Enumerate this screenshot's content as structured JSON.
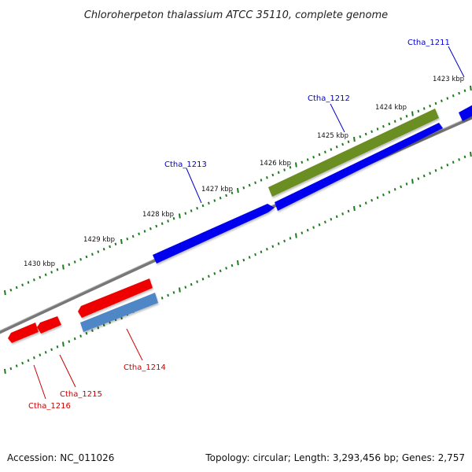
{
  "title": "Chloroherpeton thalassium ATCC 35110, complete genome",
  "footer": {
    "accession": "Accession: NC_011026",
    "topology": "Topology: circular; Length: 3,293,456 bp; Genes: 2,757"
  },
  "kbp_labels": [
    "1423 kbp",
    "1424 kbp",
    "1425 kbp",
    "1426 kbp",
    "1427 kbp",
    "1428 kbp",
    "1429 kbp",
    "1430 kbp"
  ],
  "genes": [
    {
      "name": "Ctha_1211",
      "strand": "forward",
      "color": "#0000ee"
    },
    {
      "name": "Ctha_1212",
      "strand": "forward",
      "color": "#0000ee"
    },
    {
      "name": "Ctha_1213",
      "strand": "forward",
      "color": "#0000ee"
    },
    {
      "name": "Ctha_1214",
      "strand": "reverse",
      "color": "#ee0000"
    },
    {
      "name": "Ctha_1215",
      "strand": "reverse",
      "color": "#ee0000"
    },
    {
      "name": "Ctha_1216",
      "strand": "reverse",
      "color": "#ee0000"
    }
  ],
  "colors": {
    "forward_gene": "#0000ee",
    "reverse_gene": "#ee0000",
    "rna_feature": "#6b8e23",
    "reverse_feature": "#4f86c6",
    "backbone": "#808080",
    "ticks": "#1f7a1f",
    "forward_label": "#0000cc",
    "reverse_label": "#cc0000"
  }
}
